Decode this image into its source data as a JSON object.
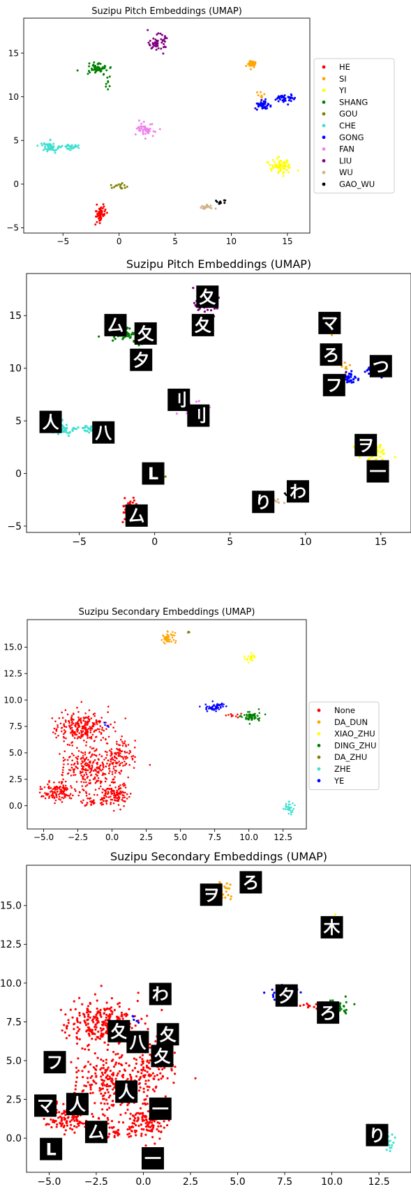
{
  "chart_data": [
    {
      "type": "scatter",
      "title": "Suzipu Pitch Embeddings (UMAP)",
      "xlabel": "",
      "ylabel": "",
      "xlim": [
        -8.5,
        17
      ],
      "ylim": [
        -5.6,
        19
      ],
      "xticks": [
        -5,
        0,
        5,
        10,
        15
      ],
      "yticks": [
        -5,
        0,
        5,
        10,
        15
      ],
      "legend_position": "right",
      "series": [
        {
          "name": "HE",
          "color": "#ff0000",
          "clusters": [
            {
              "x": -1.7,
              "y": -3.4,
              "rx": 0.5,
              "ry": 1.0,
              "n": 60
            }
          ]
        },
        {
          "name": "SI",
          "color": "#ffa500",
          "clusters": [
            {
              "x": 11.9,
              "y": 13.8,
              "rx": 0.4,
              "ry": 0.5,
              "n": 30
            },
            {
              "x": 12.6,
              "y": 10.0,
              "rx": 0.7,
              "ry": 0.8,
              "n": 8
            }
          ]
        },
        {
          "name": "YI",
          "color": "#ffff00",
          "clusters": [
            {
              "x": 14.5,
              "y": 2.1,
              "rx": 1.0,
              "ry": 1.2,
              "n": 70
            }
          ]
        },
        {
          "name": "SHANG",
          "color": "#008000",
          "clusters": [
            {
              "x": -2.0,
              "y": 13.2,
              "rx": 1.2,
              "ry": 0.8,
              "n": 55
            },
            {
              "x": -1.0,
              "y": 11.5,
              "rx": 0.3,
              "ry": 0.8,
              "n": 8
            }
          ]
        },
        {
          "name": "GOU",
          "color": "#808000",
          "clusters": [
            {
              "x": 0.1,
              "y": -0.3,
              "rx": 0.8,
              "ry": 0.4,
              "n": 15
            }
          ]
        },
        {
          "name": "CHE",
          "color": "#40e0d0",
          "clusters": [
            {
              "x": -6.2,
              "y": 4.2,
              "rx": 1.0,
              "ry": 0.7,
              "n": 55
            },
            {
              "x": -4.3,
              "y": 4.2,
              "rx": 1.0,
              "ry": 0.4,
              "n": 30
            }
          ]
        },
        {
          "name": "GONG",
          "color": "#0000ff",
          "clusters": [
            {
              "x": 12.8,
              "y": 9.0,
              "rx": 0.8,
              "ry": 0.7,
              "n": 40
            },
            {
              "x": 14.8,
              "y": 9.8,
              "rx": 0.9,
              "ry": 0.6,
              "n": 40
            }
          ]
        },
        {
          "name": "FAN",
          "color": "#ee82ee",
          "clusters": [
            {
              "x": 2.5,
              "y": 6.2,
              "rx": 1.0,
              "ry": 0.8,
              "n": 50
            }
          ]
        },
        {
          "name": "LIU",
          "color": "#800080",
          "clusters": [
            {
              "x": 3.4,
              "y": 16.2,
              "rx": 0.8,
              "ry": 1.0,
              "n": 55
            }
          ]
        },
        {
          "name": "WU",
          "color": "#d2b48c",
          "clusters": [
            {
              "x": 7.9,
              "y": -2.6,
              "rx": 0.8,
              "ry": 0.25,
              "n": 20
            }
          ]
        },
        {
          "name": "GAO_WU",
          "color": "#000000",
          "clusters": [
            {
              "x": 9.0,
              "y": -2.0,
              "rx": 0.6,
              "ry": 0.4,
              "n": 10
            }
          ]
        }
      ]
    },
    {
      "type": "scatter",
      "title": "Suzipu Pitch Embeddings (UMAP)",
      "xlabel": "",
      "ylabel": "",
      "xlim": [
        -8.5,
        17
      ],
      "ylim": [
        -5.6,
        19
      ],
      "xticks": [
        -5,
        0,
        5,
        10,
        15
      ],
      "yticks": [
        -5,
        0,
        5,
        10,
        15
      ],
      "thumbnails": [
        {
          "x": 3.5,
          "y": 16.8,
          "glyph": "夂"
        },
        {
          "x": 3.2,
          "y": 14.1,
          "glyph": "夂"
        },
        {
          "x": -2.6,
          "y": 14.1,
          "glyph": "厶"
        },
        {
          "x": -0.6,
          "y": 13.3,
          "glyph": "夂"
        },
        {
          "x": -0.9,
          "y": 10.8,
          "glyph": "夕"
        },
        {
          "x": 1.6,
          "y": 7.0,
          "glyph": "刂"
        },
        {
          "x": 2.9,
          "y": 5.5,
          "glyph": "刂"
        },
        {
          "x": -6.9,
          "y": 4.9,
          "glyph": "人"
        },
        {
          "x": -3.4,
          "y": 3.9,
          "glyph": "八"
        },
        {
          "x": -0.1,
          "y": 0.0,
          "glyph": "L"
        },
        {
          "x": -1.2,
          "y": -4.0,
          "glyph": "厶"
        },
        {
          "x": 11.6,
          "y": 14.3,
          "glyph": "マ"
        },
        {
          "x": 11.7,
          "y": 11.3,
          "glyph": "ろ"
        },
        {
          "x": 11.9,
          "y": 8.4,
          "glyph": "フ"
        },
        {
          "x": 15.0,
          "y": 10.2,
          "glyph": "つ"
        },
        {
          "x": 14.0,
          "y": 2.7,
          "glyph": "ヲ"
        },
        {
          "x": 14.8,
          "y": 0.2,
          "glyph": "一"
        },
        {
          "x": 9.5,
          "y": -1.7,
          "glyph": "わ"
        },
        {
          "x": 7.2,
          "y": -2.7,
          "glyph": "り"
        }
      ]
    },
    {
      "type": "scatter",
      "title": "Suzipu Secondary Embeddings (UMAP)",
      "xlabel": "",
      "ylabel": "",
      "xlim": [
        -6.2,
        14.2
      ],
      "ylim": [
        -2.2,
        17.6
      ],
      "xticks": [
        -5.0,
        -2.5,
        0.0,
        2.5,
        5.0,
        7.5,
        10.0,
        12.5
      ],
      "yticks": [
        0.0,
        2.5,
        5.0,
        7.5,
        10.0,
        12.5,
        15.0
      ],
      "legend_position": "right",
      "series": [
        {
          "name": "None",
          "color": "#ff0000",
          "clusters": [
            {
              "x": -2.2,
              "y": 7.4,
              "rx": 2.2,
              "ry": 1.8,
              "n": 260
            },
            {
              "x": -1.5,
              "y": 3.5,
              "rx": 2.6,
              "ry": 2.2,
              "n": 260
            },
            {
              "x": 0.5,
              "y": 4.8,
              "rx": 1.2,
              "ry": 1.5,
              "n": 90
            },
            {
              "x": -4.0,
              "y": 1.3,
              "rx": 1.4,
              "ry": 1.0,
              "n": 120
            },
            {
              "x": 0.3,
              "y": 1.0,
              "rx": 1.1,
              "ry": 1.2,
              "n": 110
            },
            {
              "x": -1.4,
              "y": 0.4,
              "rx": 0.9,
              "ry": 0.6,
              "n": 40
            },
            {
              "x": 8.8,
              "y": 8.6,
              "rx": 0.6,
              "ry": 0.2,
              "n": 10
            }
          ]
        },
        {
          "name": "DA_DUN",
          "color": "#ffa500",
          "clusters": [
            {
              "x": 4.1,
              "y": 15.9,
              "rx": 0.6,
              "ry": 0.6,
              "n": 45
            }
          ]
        },
        {
          "name": "XIAO_ZHU",
          "color": "#ffff00",
          "clusters": [
            {
              "x": 10.1,
              "y": 14.0,
              "rx": 0.4,
              "ry": 0.4,
              "n": 20
            }
          ]
        },
        {
          "name": "DING_ZHU",
          "color": "#008000",
          "clusters": [
            {
              "x": 10.2,
              "y": 8.4,
              "rx": 0.8,
              "ry": 0.6,
              "n": 55
            }
          ]
        },
        {
          "name": "DA_ZHU",
          "color": "#808000",
          "clusters": [
            {
              "x": 5.6,
              "y": 16.4,
              "rx": 0.1,
              "ry": 0.1,
              "n": 4
            }
          ]
        },
        {
          "name": "ZHE",
          "color": "#40e0d0",
          "clusters": [
            {
              "x": 12.9,
              "y": -0.2,
              "rx": 0.5,
              "ry": 0.6,
              "n": 30
            }
          ]
        },
        {
          "name": "YE",
          "color": "#0000ff",
          "clusters": [
            {
              "x": 7.5,
              "y": 9.3,
              "rx": 0.8,
              "ry": 0.5,
              "n": 50
            },
            {
              "x": -0.5,
              "y": 7.7,
              "rx": 0.3,
              "ry": 0.3,
              "n": 5
            }
          ]
        }
      ]
    },
    {
      "type": "scatter",
      "title": "Suzipu Secondary Embeddings (UMAP)",
      "xlabel": "",
      "ylabel": "",
      "xlim": [
        -6.2,
        14.2
      ],
      "ylim": [
        -2.2,
        17.6
      ],
      "xticks": [
        -5.0,
        -2.5,
        0.0,
        2.5,
        5.0,
        7.5,
        10.0,
        12.5
      ],
      "yticks": [
        0.0,
        2.5,
        5.0,
        7.5,
        10.0,
        12.5,
        15.0
      ],
      "thumbnails": [
        {
          "x": 3.6,
          "y": 15.7,
          "glyph": "ヲ"
        },
        {
          "x": 5.7,
          "y": 16.5,
          "glyph": "ろ"
        },
        {
          "x": 10.0,
          "y": 13.6,
          "glyph": "木"
        },
        {
          "x": 7.6,
          "y": 9.2,
          "glyph": "夕"
        },
        {
          "x": 9.8,
          "y": 8.1,
          "glyph": "ろ"
        },
        {
          "x": 0.9,
          "y": 9.3,
          "glyph": "わ"
        },
        {
          "x": -1.3,
          "y": 6.9,
          "glyph": "夂"
        },
        {
          "x": -0.3,
          "y": 6.2,
          "glyph": "八"
        },
        {
          "x": 1.3,
          "y": 6.7,
          "glyph": "夂"
        },
        {
          "x": 1.0,
          "y": 5.3,
          "glyph": "夂"
        },
        {
          "x": -4.7,
          "y": 4.9,
          "glyph": "フ"
        },
        {
          "x": -0.9,
          "y": 3.0,
          "glyph": "人"
        },
        {
          "x": -3.5,
          "y": 2.2,
          "glyph": "人"
        },
        {
          "x": -5.2,
          "y": 2.1,
          "glyph": "マ"
        },
        {
          "x": 0.9,
          "y": 1.9,
          "glyph": "一"
        },
        {
          "x": -2.5,
          "y": 0.4,
          "glyph": "厶"
        },
        {
          "x": -4.9,
          "y": -0.7,
          "glyph": "L"
        },
        {
          "x": 0.5,
          "y": -1.3,
          "glyph": "一"
        },
        {
          "x": 12.4,
          "y": 0.2,
          "glyph": "り"
        }
      ]
    }
  ]
}
